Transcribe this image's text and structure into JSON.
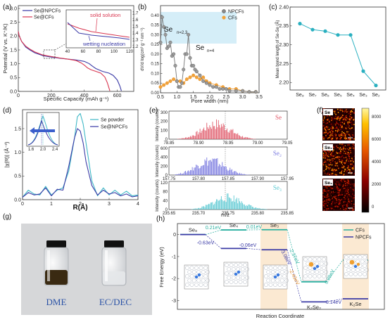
{
  "panels": {
    "a": {
      "label": "(a)",
      "xlabel": "Specific Capacity (mAh g⁻¹)",
      "ylabel": "Potential (V vs. K⁺/K)",
      "legend": [
        "Se@NPCFs",
        "Se@CFs"
      ],
      "x_ticks": [
        "0",
        "200",
        "400",
        "600"
      ],
      "y_ticks": [
        "0.0",
        "0.5",
        "1.0",
        "1.5",
        "2.0",
        "2.5",
        "3.0"
      ],
      "inset": {
        "solid_label": "solid solution",
        "wetting_label": "wetting nucleation",
        "x_ticks": [
          "40",
          "60",
          "80",
          "100",
          "120"
        ],
        "y_ticks": [
          "1.2",
          "1.3",
          "1.4",
          "1.5",
          "1.6",
          "1.7"
        ]
      }
    },
    "b": {
      "label": "(b)",
      "xlabel": "Pore width (nm)",
      "ylabel": "dV/d log(cm³ g⁻¹ nm⁻¹)",
      "legend": [
        "NPCFs",
        "CFs"
      ],
      "x_ticks": [
        "0.5",
        "1.0",
        "1.5",
        "2.0",
        "2.5",
        "3.0",
        "3.5"
      ],
      "y_ticks": [
        "0.00",
        "0.05",
        "0.10",
        "0.15",
        "0.20",
        "0.25",
        "0.30",
        "0.35",
        "0.40"
      ],
      "ann1": "Se",
      "ann1_sub": "n=2,3",
      "ann2": "Se",
      "ann2_sub": "n=4"
    },
    "c": {
      "label": "(c)",
      "ylabel": "Mean bond length of Se-Se (Å)",
      "y_ticks": [
        "2.20",
        "2.25",
        "2.30",
        "2.35",
        "2.40"
      ],
      "categories": [
        "Se₈",
        "Se₇",
        "Se₆",
        "Se₅",
        "Se₄",
        "Se₃",
        "Se₂"
      ]
    },
    "d": {
      "label": "(d)",
      "xlabel": "R(Å)",
      "ylabel": "|χ(R)| (Å⁻³)",
      "legend": [
        "Se powder",
        "Se@NPCFs"
      ],
      "x_ticks": [
        "0",
        "1",
        "2",
        "3",
        "4"
      ],
      "y_ticks": [
        "0.0",
        "0.5",
        "1.0",
        "1.5"
      ],
      "inset_x_ticks": [
        "1.6",
        "2.0",
        "2.4"
      ]
    },
    "e": {
      "label": "(e)",
      "xlabel": "m/z",
      "ylabel": "Intensity (counts)",
      "sub": [
        {
          "name": "Se",
          "ticks": [
            "78.85",
            "78.90",
            "78.95",
            "79.00",
            "79.05"
          ],
          "y_ticks": [
            "0",
            "100",
            "200",
            "300"
          ]
        },
        {
          "name": "Se₂",
          "ticks": [
            "157.75",
            "157.80",
            "157.85",
            "157.90",
            "157.95"
          ],
          "y_ticks": [
            "0",
            "200",
            "400",
            "600"
          ]
        },
        {
          "name": "Se₃",
          "ticks": [
            "235.65",
            "235.70",
            "235.75",
            "235.80",
            "235.85"
          ],
          "y_ticks": [
            "0",
            "40",
            "80",
            "120"
          ]
        }
      ]
    },
    "f": {
      "label": "(f)",
      "maps": [
        "Se",
        "Se₂",
        "Se₃"
      ],
      "colorbar_ticks": [
        "8000",
        "6000",
        "4000",
        "2000",
        "0"
      ]
    },
    "g": {
      "label": "(g)",
      "vial_labels": [
        "DME",
        "EC/DEC"
      ]
    },
    "h": {
      "label": "(h)",
      "xlabel": "Reaction Coordinate",
      "ylabel": "Free Energy (eV)",
      "y_ticks": [
        "0",
        "-1",
        "-2",
        "-3"
      ],
      "legend": [
        "CFs",
        "NPCFs"
      ],
      "species": [
        "Se₈",
        "Se₄",
        "Se₃",
        "K₂Se₂",
        "K₂Se"
      ],
      "energies": [
        "0.21eV",
        "-0.63eV",
        "0.01eV",
        "-0.06eV",
        "-2.37eV",
        "-3.08eV",
        "-2.43eV",
        "0.99eV",
        "0.14eV"
      ]
    }
  },
  "chart_data": [
    {
      "type": "line",
      "title": "",
      "xlabel": "Specific Capacity (mAh g⁻¹)",
      "ylabel": "Potential (V vs. K⁺/K)",
      "xlim": [
        0,
        700
      ],
      "ylim": [
        0,
        3.0
      ],
      "series": [
        {
          "name": "Se@NPCFs",
          "color": "#3a3aa6",
          "x": [
            0,
            5,
            20,
            45,
            70,
            100,
            150,
            200,
            250,
            300,
            350,
            400,
            430,
            450,
            470,
            490,
            510,
            550,
            575,
            600,
            615,
            625
          ],
          "y": [
            2.1,
            1.95,
            1.75,
            1.55,
            1.45,
            1.35,
            1.25,
            1.2,
            1.16,
            1.13,
            1.1,
            1.05,
            0.97,
            0.88,
            0.8,
            0.75,
            0.7,
            0.64,
            0.56,
            0.4,
            0.2,
            0.02
          ]
        },
        {
          "name": "Se@CFs",
          "color": "#d8354f",
          "x": [
            0,
            5,
            20,
            45,
            70,
            100,
            150,
            200,
            250,
            300,
            350,
            380,
            400,
            420,
            440,
            470,
            500,
            525,
            540,
            555
          ],
          "y": [
            2.1,
            1.95,
            1.75,
            1.58,
            1.48,
            1.38,
            1.27,
            1.22,
            1.17,
            1.13,
            1.08,
            1.0,
            0.92,
            0.82,
            0.76,
            0.7,
            0.64,
            0.5,
            0.3,
            0.02
          ]
        }
      ]
    },
    {
      "type": "line",
      "title": "",
      "xlabel": "Pore width (nm)",
      "ylabel": "dV/d log(cm³ g⁻¹ nm⁻¹)",
      "xlim": [
        0.5,
        3.5
      ],
      "ylim": [
        0,
        0.45
      ],
      "series": [
        {
          "name": "NPCFs",
          "color": "#777777",
          "x": [
            0.5,
            0.55,
            0.6,
            0.65,
            0.7,
            0.75,
            0.8,
            0.85,
            0.9,
            0.95,
            1.0,
            1.05,
            1.1,
            1.15,
            1.2,
            1.25,
            1.3,
            1.35,
            1.4,
            1.45,
            1.5,
            1.55,
            1.6,
            1.7,
            1.8,
            1.9,
            2.0,
            2.1,
            2.2,
            2.3,
            2.4,
            2.5,
            2.6,
            2.8,
            3.0,
            3.2,
            3.4
          ],
          "y": [
            0.26,
            0.39,
            0.34,
            0.3,
            0.23,
            0.24,
            0.26,
            0.19,
            0.2,
            0.14,
            0.06,
            0.03,
            0.03,
            0.05,
            0.12,
            0.2,
            0.2,
            0.3,
            0.18,
            0.14,
            0.14,
            0.12,
            0.11,
            0.09,
            0.06,
            0.05,
            0.04,
            0.03,
            0.03,
            0.02,
            0.02,
            0.02,
            0.01,
            0.01,
            0.01,
            0.005,
            0.005
          ]
        },
        {
          "name": "CFs",
          "color": "#f2a23a",
          "x": [
            0.5,
            0.6,
            0.7,
            0.8,
            0.9,
            1.0,
            1.1,
            1.2,
            1.3,
            1.4,
            1.5,
            1.6,
            1.7,
            1.8,
            1.9,
            2.0,
            2.2,
            2.4,
            2.6,
            2.8,
            3.0,
            3.2,
            3.4
          ],
          "y": [
            0.03,
            0.04,
            0.05,
            0.06,
            0.07,
            0.06,
            0.06,
            0.05,
            0.07,
            0.08,
            0.09,
            0.08,
            0.07,
            0.08,
            0.06,
            0.05,
            0.04,
            0.03,
            0.02,
            0.02,
            0.01,
            0.005,
            0.005
          ]
        }
      ]
    },
    {
      "type": "line",
      "title": "",
      "xlabel": "",
      "ylabel": "Mean bond length of Se-Se (Å)",
      "ylim": [
        2.18,
        2.4
      ],
      "categories": [
        "Se₈",
        "Se₇",
        "Se₆",
        "Se₅",
        "Se₄",
        "Se₃",
        "Se₂"
      ],
      "series": [
        {
          "name": "",
          "color": "#2ab0c0",
          "values": [
            2.356,
            2.34,
            2.336,
            2.326,
            2.326,
            2.23,
            2.192
          ]
        }
      ]
    },
    {
      "type": "line",
      "title": "",
      "xlabel": "R(Å)",
      "ylabel": "|χ(R)| (Å⁻³)",
      "xlim": [
        0,
        4
      ],
      "ylim": [
        0,
        1.9
      ],
      "series": [
        {
          "name": "Se powder",
          "color": "#3fb8c6",
          "x": [
            0,
            0.2,
            0.4,
            0.6,
            0.8,
            1.0,
            1.2,
            1.4,
            1.6,
            1.8,
            1.9,
            2.0,
            2.1,
            2.2,
            2.4,
            2.6,
            2.8,
            3.0,
            3.2,
            3.4,
            3.6,
            3.8,
            4.0
          ],
          "y": [
            0.05,
            0.2,
            0.12,
            0.1,
            0.28,
            0.1,
            0.2,
            0.25,
            0.6,
            1.3,
            1.75,
            1.82,
            1.6,
            1.2,
            0.4,
            0.08,
            0.25,
            0.1,
            0.2,
            0.1,
            0.18,
            0.08,
            0.1
          ]
        },
        {
          "name": "Se@NPCFs",
          "color": "#3a3aa6",
          "x": [
            0,
            0.2,
            0.4,
            0.6,
            0.8,
            1.0,
            1.2,
            1.4,
            1.6,
            1.8,
            1.9,
            2.0,
            2.1,
            2.2,
            2.4,
            2.6,
            2.8,
            3.0,
            3.2,
            3.4,
            3.6,
            3.8,
            4.0
          ],
          "y": [
            0.05,
            0.15,
            0.1,
            0.12,
            0.25,
            0.08,
            0.22,
            0.2,
            0.7,
            1.3,
            1.5,
            1.45,
            1.2,
            0.8,
            0.3,
            0.1,
            0.2,
            0.12,
            0.15,
            0.08,
            0.12,
            0.06,
            0.08
          ]
        }
      ]
    },
    {
      "type": "bar",
      "title": "",
      "xlabel": "m/z",
      "ylabel": "Intensity (counts)",
      "series": [
        {
          "name": "Se",
          "color": "#e05a6a",
          "xlim": [
            78.85,
            79.05
          ],
          "ylim": [
            0,
            300
          ],
          "peak_center": 78.93,
          "peak_max": 220
        },
        {
          "name": "Se₂",
          "color": "#7a7ae0",
          "xlim": [
            157.75,
            157.95
          ],
          "ylim": [
            0,
            600
          ],
          "peak_center": 157.82,
          "peak_max": 420
        },
        {
          "name": "Se₃",
          "color": "#5cc9d2",
          "xlim": [
            235.65,
            235.85
          ],
          "ylim": [
            0,
            120
          ],
          "peak_center": 235.75,
          "peak_max": 70
        }
      ]
    },
    {
      "type": "line",
      "title": "",
      "xlabel": "Reaction Coordinate",
      "ylabel": "Free Energy (eV)",
      "ylim": [
        -3.4,
        0.5
      ],
      "categories": [
        "Se₈",
        "Se₄",
        "Se₃",
        "K₂Se₂",
        "K₂Se"
      ],
      "series": [
        {
          "name": "CFs",
          "color": "#2ab0a0",
          "values": [
            0,
            0.21,
            0.22,
            -2.15,
            -1.16
          ]
        },
        {
          "name": "NPCFs",
          "color": "#3a3aa6",
          "values": [
            0,
            -0.63,
            -0.69,
            -3.06,
            -2.92
          ]
        }
      ]
    }
  ]
}
